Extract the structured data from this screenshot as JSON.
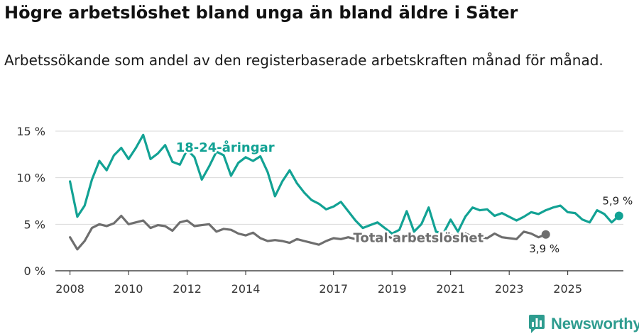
{
  "header": {
    "title": "Högre arbetslöshet bland unga än bland äldre i Säter",
    "subtitle": "Arbetssökande som andel av den registerbaserade arbetskraften månad för månad."
  },
  "brand": {
    "name": "Newsworthy"
  },
  "colors": {
    "youth": "#12a294",
    "total": "#6e6e6e",
    "grid": "#d9d9d9",
    "axis": "#222222"
  },
  "chart_data": {
    "type": "line",
    "title": "Högre arbetslöshet bland unga än bland äldre i Säter",
    "subtitle": "Arbetssökande som andel av den registerbaserade arbetskraften månad för månad.",
    "xlabel": "",
    "ylabel": "",
    "xlim": [
      2007.5,
      2026.9
    ],
    "ylim": [
      0,
      15
    ],
    "y_ticks": [
      0,
      5,
      10,
      15
    ],
    "y_tick_labels": [
      "0 %",
      "5 %",
      "10 %",
      "15 %"
    ],
    "x_ticks": [
      2008,
      2010,
      2012,
      2014,
      2017,
      2019,
      2021,
      2023,
      2025
    ],
    "x_tick_labels": [
      "2008",
      "2010",
      "2012",
      "2014",
      "2017",
      "2019",
      "2021",
      "2023",
      "2025"
    ],
    "grid": true,
    "series": [
      {
        "name": "18-24-åringar",
        "label": "18-24-åringar",
        "end_label": "5,9 %",
        "x_start": 2008.0,
        "x_step": 0.25,
        "values": [
          9.6,
          5.8,
          7.0,
          9.8,
          11.8,
          10.8,
          12.4,
          13.2,
          12.0,
          13.2,
          14.6,
          12.0,
          12.6,
          13.5,
          11.7,
          11.4,
          13.0,
          12.2,
          9.8,
          11.2,
          12.8,
          12.4,
          10.2,
          11.6,
          12.2,
          11.8,
          12.3,
          10.6,
          8.0,
          9.6,
          10.8,
          9.4,
          8.4,
          7.6,
          7.2,
          6.6,
          6.9,
          7.4,
          6.4,
          5.4,
          4.6,
          4.9,
          5.2,
          4.6,
          4.0,
          4.4,
          6.4,
          4.2,
          5.0,
          6.8,
          4.2,
          4.0,
          5.5,
          4.2,
          5.8,
          6.8,
          6.5,
          6.6,
          5.9,
          6.2,
          5.8,
          5.4,
          5.8,
          6.3,
          6.1,
          6.5,
          6.8,
          7.0,
          6.3,
          6.2,
          5.5,
          5.2,
          6.5,
          6.1,
          5.2,
          5.9
        ]
      },
      {
        "name": "Total arbetslöshet",
        "label": "Total arbetslöshet",
        "end_label": "3,9 %",
        "x_start": 2008.0,
        "x_step": 0.25,
        "values": [
          3.6,
          2.3,
          3.2,
          4.6,
          5.0,
          4.8,
          5.1,
          5.9,
          5.0,
          5.2,
          5.4,
          4.6,
          4.9,
          4.8,
          4.3,
          5.2,
          5.4,
          4.8,
          4.9,
          5.0,
          4.2,
          4.5,
          4.4,
          4.0,
          3.8,
          4.1,
          3.5,
          3.2,
          3.3,
          3.2,
          3.0,
          3.4,
          3.2,
          3.0,
          2.8,
          3.2,
          3.5,
          3.4,
          3.6,
          3.4,
          3.3,
          3.2,
          3.6,
          3.8,
          3.5,
          3.6,
          3.8,
          3.6,
          3.8,
          3.7,
          3.9,
          3.6,
          3.8,
          3.9,
          4.0,
          3.7,
          3.6,
          3.5,
          4.0,
          3.6,
          3.5,
          3.4,
          4.2,
          4.0,
          3.6,
          3.9
        ]
      }
    ]
  }
}
